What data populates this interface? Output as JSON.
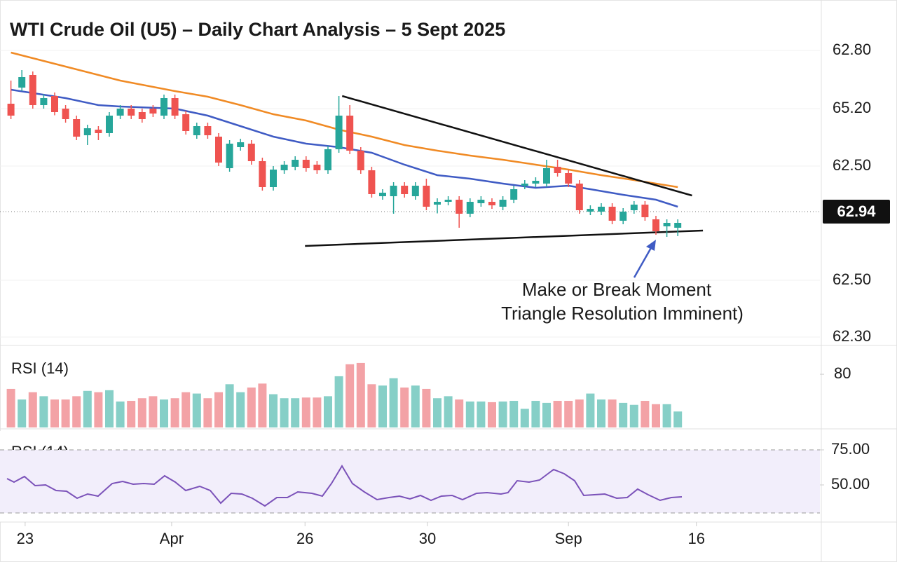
{
  "chart_data": [
    {
      "type": "candlestick",
      "title": "WTI Crude Oil (U5) – Daily Chart Analysis – 5 Sept 2025",
      "x": [
        0,
        1,
        2,
        3,
        4,
        5,
        6,
        7,
        8,
        9,
        10,
        11,
        12,
        13,
        14,
        15,
        16,
        17,
        18,
        19,
        20,
        21,
        22,
        23,
        24,
        25,
        26,
        27,
        28,
        29,
        30,
        31,
        32,
        33,
        34,
        35,
        36,
        37,
        38,
        39,
        40,
        41,
        42,
        43,
        44,
        45,
        46,
        47,
        48,
        49,
        50,
        51,
        52,
        53,
        54,
        55,
        56,
        57,
        58,
        59,
        60,
        61
      ],
      "open": [
        63.556,
        63.648,
        63.72,
        63.548,
        63.6,
        63.528,
        63.468,
        63.376,
        63.408,
        63.388,
        63.488,
        63.528,
        63.508,
        63.528,
        63.488,
        63.588,
        63.496,
        63.376,
        63.428,
        63.368,
        63.188,
        63.308,
        63.328,
        63.228,
        63.08,
        63.176,
        63.196,
        63.236,
        63.208,
        63.176,
        63.296,
        63.488,
        63.288,
        63.176,
        63.028,
        63.028,
        63.088,
        63.028,
        63.088,
        62.98,
        62.996,
        63.008,
        62.928,
        62.988,
        62.996,
        62.968,
        63.008,
        63.088,
        63.1,
        63.1,
        63.196,
        63.16,
        63.1,
        62.94,
        62.94,
        62.968,
        62.888,
        62.948,
        62.98,
        62.896,
        62.856,
        62.848
      ],
      "high": [
        63.688,
        63.748,
        63.74,
        63.61,
        63.62,
        63.548,
        63.488,
        63.436,
        63.428,
        63.508,
        63.548,
        63.548,
        63.528,
        63.548,
        63.608,
        63.608,
        63.516,
        63.448,
        63.448,
        63.388,
        63.348,
        63.356,
        63.348,
        63.248,
        63.2,
        63.228,
        63.256,
        63.256,
        63.228,
        63.316,
        63.6,
        63.548,
        63.308,
        63.196,
        63.068,
        63.108,
        63.108,
        63.108,
        63.128,
        63.016,
        63.028,
        63.028,
        63.016,
        63.028,
        63.016,
        63.028,
        63.088,
        63.12,
        63.136,
        63.236,
        63.236,
        63.18,
        63.12,
        62.976,
        62.988,
        62.988,
        62.96,
        63.0,
        63.0,
        62.916,
        62.896,
        62.896
      ],
      "low": [
        63.468,
        63.628,
        63.528,
        63.528,
        63.49,
        63.448,
        63.348,
        63.32,
        63.348,
        63.368,
        63.468,
        63.468,
        63.448,
        63.48,
        63.468,
        63.468,
        63.38,
        63.356,
        63.356,
        63.2,
        63.168,
        63.288,
        63.208,
        63.06,
        63.06,
        63.156,
        63.176,
        63.168,
        63.156,
        63.156,
        63.276,
        63.268,
        63.156,
        63.02,
        63.008,
        62.928,
        63.02,
        63.008,
        62.948,
        62.93,
        62.976,
        62.848,
        62.908,
        62.968,
        62.956,
        62.948,
        62.988,
        63.068,
        63.08,
        63.08,
        63.14,
        63.08,
        62.928,
        62.92,
        62.92,
        62.868,
        62.868,
        62.928,
        62.888,
        62.808,
        62.796,
        62.8
      ],
      "close": [
        63.488,
        63.708,
        63.548,
        63.588,
        63.508,
        63.468,
        63.368,
        63.416,
        63.388,
        63.488,
        63.528,
        63.488,
        63.468,
        63.5,
        63.588,
        63.488,
        63.4,
        63.428,
        63.376,
        63.22,
        63.328,
        63.336,
        63.228,
        63.08,
        63.18,
        63.208,
        63.236,
        63.188,
        63.176,
        63.296,
        63.488,
        63.288,
        63.176,
        63.04,
        63.048,
        63.088,
        63.04,
        63.088,
        62.968,
        62.996,
        63.008,
        62.928,
        62.996,
        63.008,
        62.976,
        63.008,
        63.068,
        63.1,
        63.116,
        63.188,
        63.16,
        63.1,
        62.948,
        62.956,
        62.968,
        62.888,
        62.94,
        62.98,
        62.908,
        62.828,
        62.876,
        62.876
      ],
      "up_color": "#26a69a",
      "down_color": "#ef5350",
      "xlim": [
        -1,
        74
      ],
      "ylim": [
        62.188,
        64.108
      ],
      "price_axis_labels": [
        "62.80",
        "65.20",
        "62.50",
        "62.50",
        "62.30"
      ],
      "series": [
        {
          "color": "#3f5bc4",
          "x": [
            0,
            5,
            8,
            10,
            15,
            18,
            21,
            24,
            27,
            30,
            33,
            36,
            39,
            42,
            45,
            48,
            51,
            53,
            56,
            59,
            61
          ],
          "values": [
            63.636,
            63.588,
            63.548,
            63.54,
            63.528,
            63.488,
            63.428,
            63.368,
            63.328,
            63.308,
            63.276,
            63.208,
            63.148,
            63.128,
            63.1,
            63.076,
            63.088,
            63.068,
            63.036,
            63.008,
            62.968
          ]
        },
        {
          "color": "#f08a24",
          "x": [
            0,
            5,
            10,
            15,
            18,
            21,
            24,
            27,
            30,
            33,
            36,
            39,
            42,
            45,
            48,
            51,
            54,
            57,
            61
          ],
          "values": [
            63.848,
            63.768,
            63.688,
            63.628,
            63.596,
            63.548,
            63.496,
            63.46,
            63.408,
            63.368,
            63.32,
            63.288,
            63.26,
            63.236,
            63.208,
            63.18,
            63.148,
            63.12,
            63.08
          ]
        }
      ],
      "trendlines": [
        {
          "x": [
            30.3,
            62.3
          ],
          "values": [
            63.6,
            63.032
          ]
        },
        {
          "x": [
            26.9,
            63.3
          ],
          "values": [
            62.744,
            62.832
          ]
        }
      ],
      "last_price": 62.94,
      "annotation": [
        "Make or Break Moment",
        "Triangle Resolution Imminent)"
      ]
    },
    {
      "type": "bar",
      "title": "RSI (14)",
      "x": [
        0,
        1,
        2,
        3,
        4,
        5,
        6,
        7,
        8,
        9,
        10,
        11,
        12,
        13,
        14,
        15,
        16,
        17,
        18,
        19,
        20,
        21,
        22,
        23,
        24,
        25,
        26,
        27,
        28,
        29,
        30,
        31,
        32,
        33,
        34,
        35,
        36,
        37,
        38,
        39,
        40,
        41,
        42,
        43,
        44,
        45,
        46,
        47,
        48,
        49,
        50,
        51,
        52,
        53,
        54,
        55,
        56,
        57,
        58,
        59,
        60,
        61
      ],
      "values": [
        58,
        42,
        53,
        47,
        42,
        42,
        47,
        55,
        53,
        56,
        39,
        40,
        44,
        47,
        42,
        44,
        53,
        51,
        44,
        53,
        65,
        53,
        60,
        66,
        50,
        44,
        44,
        45,
        45,
        47,
        77,
        95,
        97,
        65,
        63,
        74,
        60,
        63,
        58,
        44,
        47,
        42,
        39,
        39,
        38,
        39,
        40,
        28,
        40,
        37,
        40,
        40,
        42,
        51,
        42,
        42,
        37,
        34,
        40,
        35,
        35,
        24
      ],
      "up_color": "#86cfc7",
      "down_color": "#f3a2a6",
      "xlim": [
        -1,
        74
      ],
      "ylim": [
        0,
        118
      ],
      "yticks": [
        80
      ]
    },
    {
      "type": "line",
      "title": "RSI (14)",
      "color": "#7b52b9",
      "x": [
        -0.36,
        0.28,
        1.24,
        2.21,
        3.17,
        4.13,
        5.09,
        6.05,
        7.01,
        7.97,
        9.26,
        10.22,
        11.18,
        12.14,
        13.1,
        14.06,
        15.03,
        15.99,
        17.27,
        18.23,
        19.19,
        20.15,
        21.12,
        22.08,
        23.23,
        24.32,
        25.28,
        26.24,
        27.53,
        28.49,
        29.32,
        30.28,
        31.24,
        32.33,
        33.49,
        34.58,
        35.54,
        36.5,
        37.46,
        38.42,
        39.38,
        40.35,
        41.31,
        42.59,
        43.55,
        44.83,
        45.47,
        46.31,
        47.4,
        48.36,
        49.64,
        50.6,
        51.56,
        52.4,
        53.36,
        54.32,
        55.41,
        56.37,
        57.33,
        58.29,
        59.38,
        60.41,
        61.37
      ],
      "values": [
        54.5,
        52,
        56,
        49.5,
        50,
        46,
        45.5,
        40.5,
        43.5,
        42,
        51,
        52.5,
        50.5,
        51,
        50.5,
        56.5,
        52,
        46,
        49,
        46,
        37,
        44,
        43.5,
        40.5,
        35,
        41,
        41,
        45,
        44,
        42,
        51,
        63.5,
        51,
        45,
        39.5,
        41,
        42,
        40,
        42.5,
        39,
        42,
        42.5,
        39.5,
        44,
        44.5,
        43.5,
        44.5,
        53,
        52,
        53.5,
        61,
        58,
        53,
        42.5,
        43,
        43.5,
        40.5,
        41,
        47,
        43,
        39,
        41,
        41.5
      ],
      "band": [
        30,
        75
      ],
      "xlim": [
        -1,
        74
      ],
      "ylim": [
        23.5,
        88.5
      ],
      "yticks": [
        {
          "value": 75,
          "label": "75.00"
        },
        {
          "value": 50,
          "label": "50.00"
        }
      ],
      "xticks": [
        {
          "value": 1.3,
          "label": "23"
        },
        {
          "value": 14.7,
          "label": "Apr"
        },
        {
          "value": 26.9,
          "label": "26"
        },
        {
          "value": 38.1,
          "label": "30"
        },
        {
          "value": 51,
          "label": "Sep"
        },
        {
          "value": 62.7,
          "label": "16"
        }
      ]
    }
  ]
}
